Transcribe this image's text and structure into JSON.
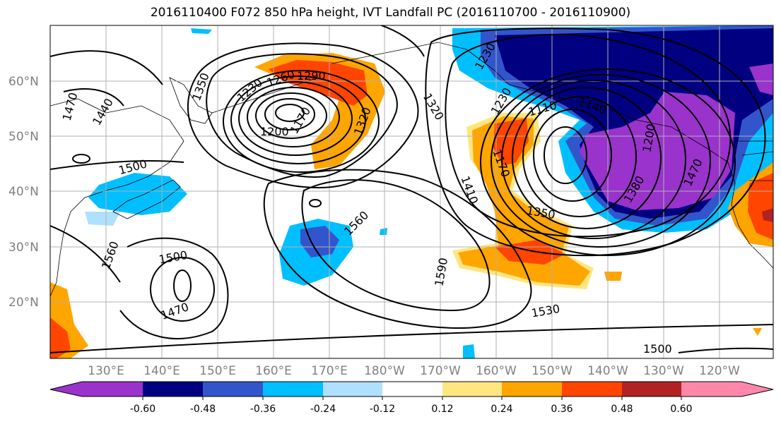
{
  "title": "2016110400 F072 850 hPa height, IVT Landfall PC (2016110700 - 2016110900)",
  "latitude_labels": [
    "60°N",
    "50°N",
    "40°N",
    "30°N",
    "20°N"
  ],
  "longitude_labels": [
    "130°E",
    "140°E",
    "150°E",
    "160°E",
    "170°E",
    "180°W",
    "170°W",
    "160°W",
    "150°W",
    "140°W",
    "130°W",
    "120°W"
  ],
  "colorbar": {
    "colors": [
      "#9933cc",
      "#000080",
      "#3355cc",
      "#00bfff",
      "#b0e0ff",
      "#ffffff",
      "#ffe680",
      "#ffa500",
      "#ff4500",
      "#b22222",
      "#ff88aa"
    ],
    "tick_labels": [
      "-0.60",
      "-0.48",
      "-0.36",
      "-0.24",
      "-0.12",
      "0.12",
      "0.24",
      "0.36",
      "0.48",
      "0.60"
    ]
  },
  "contour_labels": [
    "1470",
    "1440",
    "1350",
    "1230",
    "1260",
    "1290",
    "1320",
    "1200",
    "1170",
    "1500",
    "1560",
    "1500",
    "1470",
    "1560",
    "1410",
    "1590",
    "1530",
    "1500",
    "1110",
    "1140",
    "1170",
    "1350",
    "1380",
    "1470",
    "1200",
    "1320",
    "1230",
    "1230"
  ]
}
